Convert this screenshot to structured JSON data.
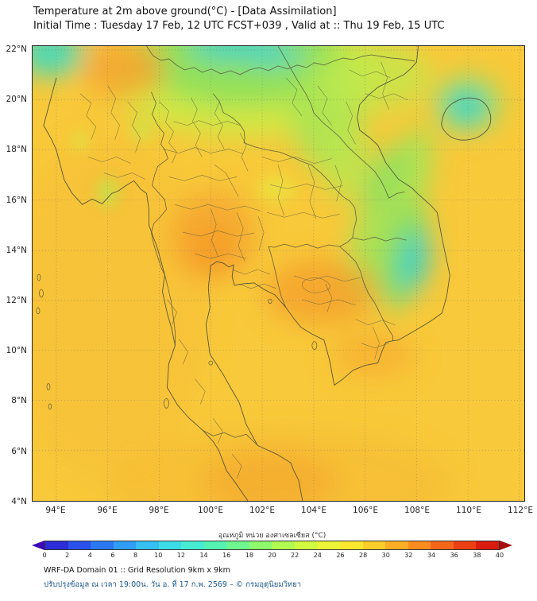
{
  "header": {
    "title": "Temperature at 2m above ground(°C) - [Data Assimilation]",
    "subtitle": "Initial Time : Tuesday 17 Feb, 12 UTC FCST+039 , Valid at :: Thu 19 Feb, 15 UTC"
  },
  "map": {
    "y_ticks": [
      "22°N",
      "20°N",
      "18°N",
      "16°N",
      "14°N",
      "12°N",
      "10°N",
      "8°N",
      "6°N",
      "4°N"
    ],
    "x_ticks": [
      "94°E",
      "96°E",
      "98°E",
      "100°E",
      "102°E",
      "104°E",
      "106°E",
      "108°E",
      "110°E",
      "112°E"
    ]
  },
  "colorbar": {
    "label": "อุณหภูมิ หน่วย องศาเซลเซียส (°C)",
    "ticks": [
      "0",
      "2",
      "4",
      "6",
      "8",
      "10",
      "12",
      "14",
      "16",
      "18",
      "20",
      "22",
      "24",
      "26",
      "28",
      "30",
      "32",
      "34",
      "36",
      "38",
      "40"
    ],
    "colors": [
      "#2c2cd8",
      "#2a52ea",
      "#2a78f2",
      "#2f9df5",
      "#35bff2",
      "#3cdbe8",
      "#45ecd2",
      "#55f3b2",
      "#6ef78e",
      "#8ef96c",
      "#b1fa52",
      "#d2fa41",
      "#ecf536",
      "#fbe72e",
      "#fdcd29",
      "#fdae24",
      "#fb8c1f",
      "#f6661a",
      "#ec3f14",
      "#d91c0e"
    ],
    "arrow_left": "#3b0bb5",
    "arrow_right": "#a50e0c"
  },
  "footer": {
    "line1": "WRF-DA Domain 01 :: Grid Resolution 9km x 9km",
    "line2": "ปรับปรุงข้อมูล ณ เวลา 19:00น. วัน อ. ที่ 17 ก.พ. 2569 – © กรมอุตุนิยมวิทยา"
  },
  "chart_data": {
    "type": "heatmap",
    "title": "Temperature at 2m above ground(°C) - [Data Assimilation]",
    "subtitle": "Initial Time : Tuesday 17 Feb, 12 UTC FCST+039 , Valid at :: Thu 19 Feb, 15 UTC",
    "xlabel": "Longitude (°E)",
    "ylabel": "Latitude (°N)",
    "x_range": [
      93.1,
      112.2
    ],
    "y_range": [
      4.0,
      22.2
    ],
    "x": [
      94,
      96,
      98,
      100,
      102,
      104,
      106,
      108,
      110,
      112
    ],
    "y": [
      22,
      20,
      18,
      16,
      14,
      12,
      10,
      8,
      6,
      4
    ],
    "values_degC": [
      [
        26,
        27,
        29,
        24,
        22,
        23,
        26,
        28,
        28,
        28
      ],
      [
        27,
        27,
        28,
        26,
        23,
        25,
        27,
        28,
        24,
        28
      ],
      [
        28,
        28,
        28,
        27,
        26,
        26,
        25,
        28,
        28,
        28
      ],
      [
        29,
        28,
        28,
        29,
        28,
        27,
        24,
        27,
        28,
        28
      ],
      [
        29,
        29,
        29,
        30,
        29,
        28,
        26,
        21,
        28,
        28
      ],
      [
        29,
        29,
        29,
        29,
        30,
        30,
        28,
        25,
        28,
        28
      ],
      [
        29,
        29,
        29,
        29,
        29,
        30,
        29,
        28,
        28,
        28
      ],
      [
        29,
        29,
        29,
        29,
        29,
        30,
        29,
        28,
        28,
        28
      ],
      [
        29,
        29,
        29,
        30,
        30,
        29,
        29,
        29,
        28,
        28
      ],
      [
        29,
        29,
        29,
        30,
        30,
        29,
        29,
        29,
        29,
        29
      ]
    ],
    "colorbar": {
      "min": 0,
      "max": 40,
      "step": 2,
      "unit": "°C",
      "label": "อุณหภูมิ หน่วย องศาเซลเซียส (°C)"
    },
    "legend_position": "bottom",
    "grid": true,
    "notes": "Yellow-orange (28-31°C) over most land/sea; green-cyan cool areas (20-25°C) over northern Laos/Vietnam mountains, Annamite range and a cold core near 108°E 13.5°N; orange (30-32°C) over central Thailand, Cambodia and far south."
  }
}
